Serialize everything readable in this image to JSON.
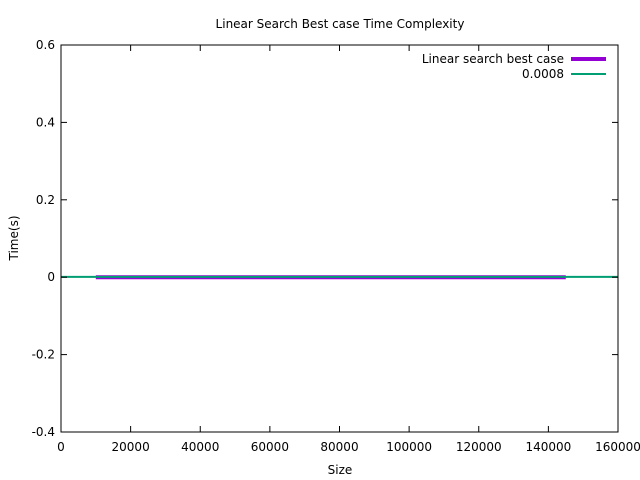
{
  "chart_data": {
    "type": "line",
    "title": "Linear Search Best case Time Complexity",
    "xlabel": "Size",
    "ylabel": "Time(s)",
    "xlim": [
      0,
      160000
    ],
    "ylim": [
      -0.4,
      0.6
    ],
    "x_ticks": [
      0,
      20000,
      40000,
      60000,
      80000,
      100000,
      120000,
      140000,
      160000
    ],
    "y_ticks": [
      -0.4,
      -0.2,
      0,
      0.2,
      0.4,
      0.6
    ],
    "x_tick_labels": [
      "0",
      "20000",
      "40000",
      "60000",
      "80000",
      "100000",
      "120000",
      "140000",
      "160000"
    ],
    "y_tick_labels": [
      "-0.4",
      "-0.2",
      "0",
      "0.2",
      "0.4",
      "0.6"
    ],
    "grid": false,
    "legend_position": "top-right",
    "series": [
      {
        "name": "Linear search best case",
        "color": "#9400d3",
        "x": [
          10000,
          20000,
          30000,
          40000,
          50000,
          60000,
          70000,
          80000,
          90000,
          100000,
          110000,
          120000,
          130000,
          140000,
          145000
        ],
        "y": [
          0,
          0,
          0,
          0,
          0,
          0,
          0,
          0,
          0,
          0,
          0,
          0,
          0,
          0,
          0
        ]
      },
      {
        "name": "0.0008",
        "color": "#009e73",
        "x": [
          0,
          160000
        ],
        "y": [
          0.0008,
          0.0008
        ]
      }
    ]
  }
}
